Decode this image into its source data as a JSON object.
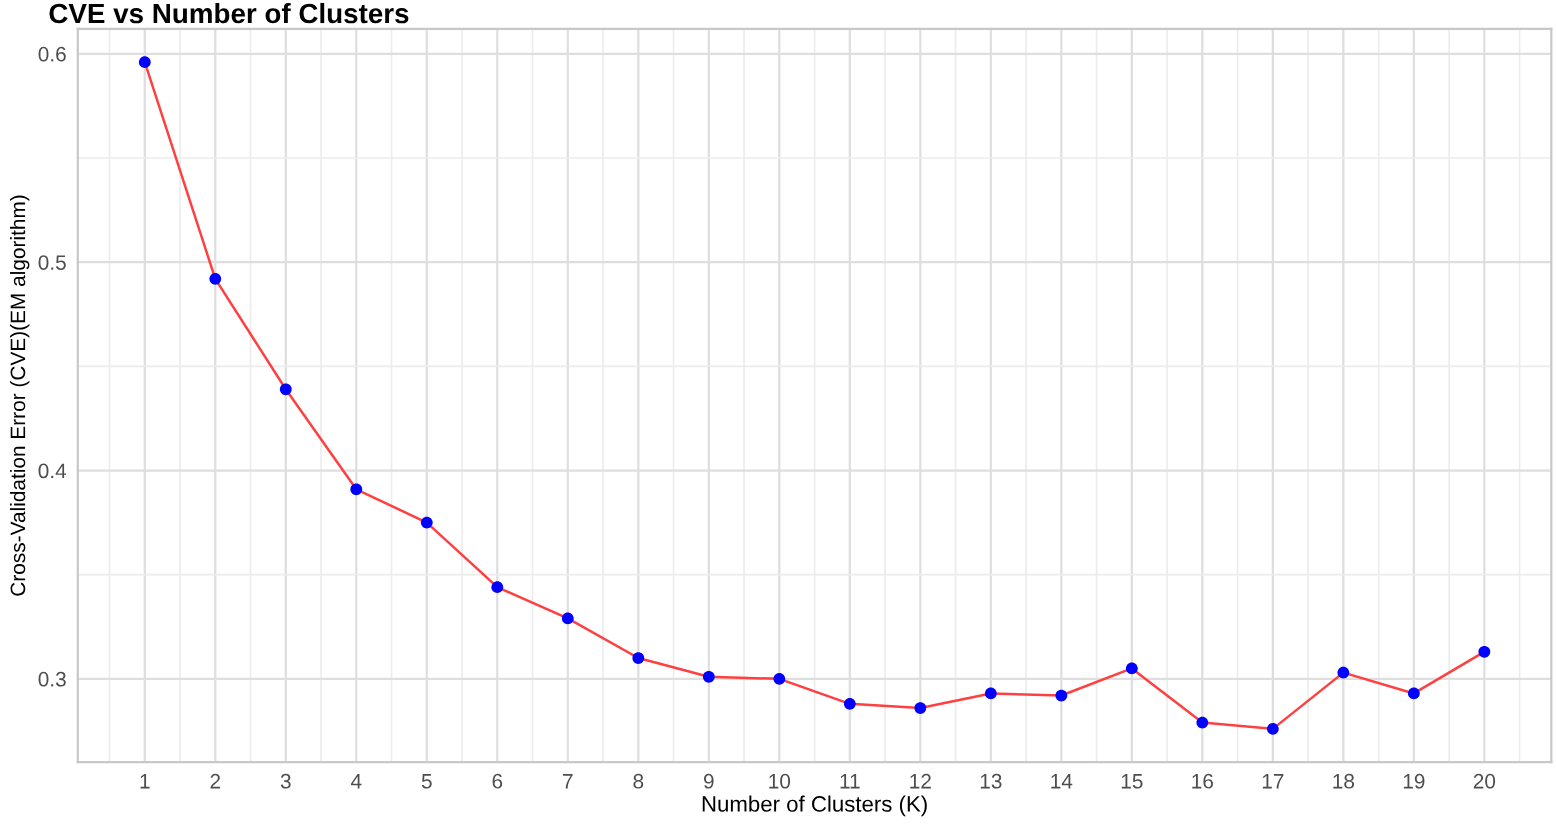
{
  "chart_data": {
    "type": "line",
    "title": "CVE vs Number of Clusters",
    "xlabel": "Number of Clusters (K)",
    "ylabel": "Cross-Validation Error (CVE)(EM algorithm)",
    "x": [
      1,
      2,
      3,
      4,
      5,
      6,
      7,
      8,
      9,
      10,
      11,
      12,
      13,
      14,
      15,
      16,
      17,
      18,
      19,
      20
    ],
    "series": [
      {
        "color": "#ff4040",
        "colors": [
          "#0000ff",
          "#0000ff",
          "#0000ff",
          "#0000ff",
          "#0000ff",
          "#0000ff",
          "#0000ff",
          "#0000ff",
          "#0000ff",
          "#0000ff",
          "#0000ff",
          "#0000ff",
          "#0000ff",
          "#0000ff",
          "#0000ff",
          "#0000ff",
          "#0000ff",
          "#0000ff",
          "#0000ff",
          "#0000ff"
        ],
        "values": [
          0.596,
          0.492,
          0.439,
          0.391,
          0.375,
          0.344,
          0.329,
          0.31,
          0.301,
          0.3,
          0.288,
          0.286,
          0.293,
          0.292,
          0.305,
          0.279,
          0.276,
          0.303,
          0.293,
          0.313
        ]
      }
    ],
    "xlim": [
      0.05,
      20.95
    ],
    "xticks": [
      1,
      2,
      3,
      4,
      5,
      6,
      7,
      8,
      9,
      10,
      11,
      12,
      13,
      14,
      15,
      16,
      17,
      18,
      19,
      20
    ],
    "ylim": [
      0.26,
      0.612
    ],
    "yticks": [
      0.3,
      0.4,
      0.5,
      0.6
    ],
    "grid": true,
    "marker": "circle",
    "line_style": "solid"
  }
}
